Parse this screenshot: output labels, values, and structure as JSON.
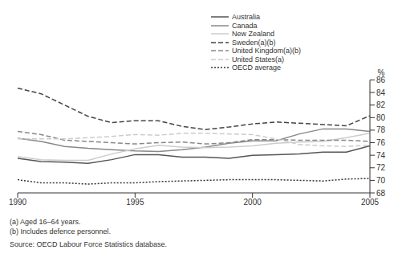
{
  "chart_data": {
    "type": "line",
    "y_label": "%",
    "x": [
      1990,
      1991,
      1992,
      1993,
      1994,
      1995,
      1996,
      1997,
      1998,
      1999,
      2000,
      2001,
      2002,
      2003,
      2004,
      2005
    ],
    "xlim": [
      1990,
      2005
    ],
    "xticks": [
      1990,
      1995,
      2000,
      2005
    ],
    "ylim": [
      68,
      86
    ],
    "yticks": [
      68,
      70,
      72,
      74,
      76,
      78,
      80,
      82,
      84,
      86
    ],
    "grid": false,
    "legend": "top",
    "series": [
      {
        "name": "Australia",
        "color": "#555555",
        "line_style": "solid",
        "values": [
          73.5,
          73.0,
          72.9,
          72.7,
          73.3,
          74.1,
          74.1,
          73.7,
          73.7,
          73.5,
          74.0,
          74.1,
          74.2,
          74.5,
          74.5,
          75.5
        ]
      },
      {
        "name": "Canada",
        "color": "#888888",
        "line_style": "solid",
        "values": [
          76.7,
          76.2,
          75.4,
          75.1,
          74.9,
          74.7,
          74.6,
          74.9,
          75.3,
          75.9,
          76.3,
          76.3,
          77.4,
          78.2,
          78.2,
          77.8
        ]
      },
      {
        "name": "New Zealand",
        "color": "#cccccc",
        "line_style": "solid",
        "values": [
          73.8,
          73.3,
          73.2,
          73.2,
          74.2,
          75.0,
          75.6,
          75.3,
          75.2,
          75.3,
          75.5,
          75.9,
          76.1,
          76.2,
          76.8,
          77.5
        ]
      },
      {
        "name": "Sweden(a)(b)",
        "color": "#444444",
        "line_style": "dashed",
        "values": [
          84.7,
          83.8,
          82.0,
          80.2,
          79.2,
          79.5,
          79.5,
          78.6,
          78.1,
          78.5,
          79.0,
          79.3,
          79.1,
          78.9,
          78.7,
          80.3
        ]
      },
      {
        "name": "United Kingdom(a)(b)",
        "color": "#888888",
        "line_style": "dashed",
        "values": [
          77.8,
          77.3,
          76.4,
          76.2,
          76.0,
          75.8,
          76.0,
          76.1,
          75.8,
          76.0,
          76.5,
          76.5,
          76.4,
          76.4,
          76.4,
          76.2
        ]
      },
      {
        "name": "United States(a)",
        "color": "#cccccc",
        "line_style": "dashed",
        "values": [
          76.6,
          76.6,
          76.6,
          76.8,
          77.0,
          77.3,
          77.2,
          77.5,
          77.5,
          77.4,
          77.3,
          76.6,
          75.7,
          75.5,
          75.4,
          75.6
        ]
      },
      {
        "name": "OECD average",
        "color": "#333333",
        "line_style": "dotted",
        "values": [
          70.1,
          69.6,
          69.6,
          69.4,
          69.6,
          69.6,
          69.8,
          69.9,
          70.0,
          70.1,
          70.1,
          70.1,
          70.0,
          69.9,
          70.2,
          70.3
        ]
      }
    ],
    "footnotes": [
      "(a) Aged 16–64 years.",
      "(b) Includes defence personnel."
    ],
    "source": "Source: OECD Labour Force Statistics database."
  }
}
